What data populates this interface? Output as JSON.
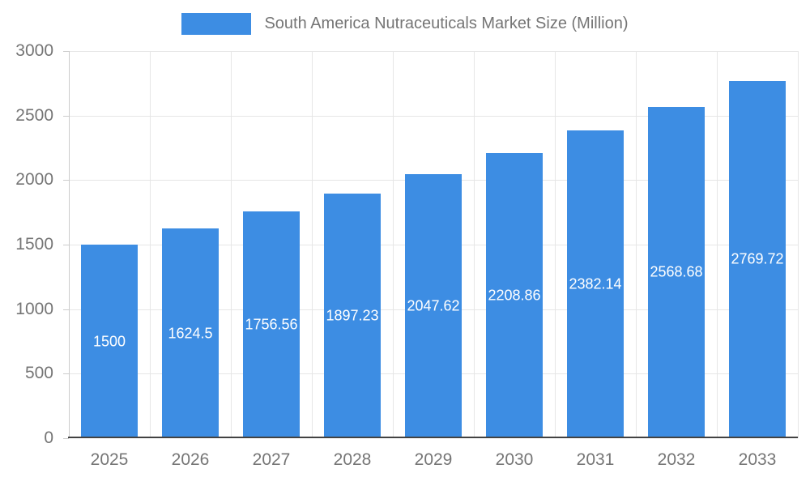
{
  "chart_data": {
    "type": "bar",
    "title": "South America Nutraceuticals Market Size (Million)",
    "categories": [
      "2025",
      "2026",
      "2027",
      "2028",
      "2029",
      "2030",
      "2031",
      "2032",
      "2033"
    ],
    "values": [
      1500,
      1624.5,
      1756.56,
      1897.23,
      2047.62,
      2208.86,
      2382.14,
      2568.68,
      2769.72
    ],
    "bar_labels": [
      "1500",
      "1624.5",
      "1756.56",
      "1897.23",
      "2047.62",
      "2208.86",
      "2382.14",
      "2568.68",
      "2769.72"
    ],
    "ylim": [
      0,
      3000
    ],
    "yticks": [
      0,
      500,
      1000,
      1500,
      2000,
      2500,
      3000
    ],
    "grid": true,
    "legend_position": "top",
    "bar_color": "#3d8de3",
    "bar_label_color": "#ffffff",
    "axis_text_color": "#757575",
    "grid_color": "#e6e6e6",
    "axis_line_color": "#cccccc",
    "baseline_color": "#424242"
  }
}
